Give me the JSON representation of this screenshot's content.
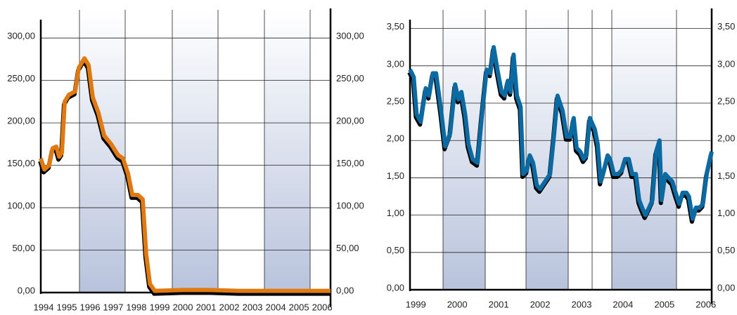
{
  "chart_data": [
    {
      "type": "line",
      "x": [
        1993.88,
        1994.03,
        1994.24,
        1994.39,
        1994.55,
        1994.67,
        1994.79,
        1994.91,
        1995.09,
        1995.36,
        1995.52,
        1995.76,
        1995.94,
        1996.12,
        1996.36,
        1996.61,
        1996.91,
        1997.21,
        1997.42,
        1997.64,
        1997.82,
        1998.06,
        1998.27,
        1998.42,
        1998.58,
        1998.79,
        1999.99,
        2001.21,
        2002.42,
        2003.64,
        2004.85,
        2006.36
      ],
      "series": [
        {
          "color": "#e07a10",
          "values": [
            158,
            145,
            150,
            170,
            172,
            160,
            165,
            225,
            233,
            237,
            265,
            276,
            268,
            230,
            212,
            185,
            175,
            162,
            158,
            140,
            115,
            115,
            110,
            45,
            10,
            2,
            3,
            3,
            2,
            2,
            2,
            2
          ]
        }
      ],
      "xlim": [
        1993.88,
        2006.36
      ],
      "xticks": [
        1994,
        1995,
        1996,
        1997,
        1998,
        1999,
        2000,
        2001,
        2002,
        2003,
        2004,
        2005,
        2006
      ],
      "ylim": [
        0,
        320
      ],
      "yticks": [
        {
          "value": 0,
          "label": "0,00"
        },
        {
          "value": 50,
          "label": "50,00"
        },
        {
          "value": 100,
          "label": "100,00"
        },
        {
          "value": 150,
          "label": "150,00"
        },
        {
          "value": 200,
          "label": "200,00"
        },
        {
          "value": 250,
          "label": "250,00"
        },
        {
          "value": 300,
          "label": "300,00"
        }
      ],
      "grid": true
    },
    {
      "type": "line",
      "x": [
        1998.86,
        1998.95,
        1999.02,
        1999.12,
        1999.24,
        1999.32,
        1999.41,
        1999.49,
        1999.61,
        1999.71,
        1999.83,
        1999.95,
        2000.03,
        2000.1,
        2000.19,
        2000.27,
        2000.37,
        2000.49,
        2000.59,
        2000.71,
        2000.8,
        2000.88,
        2000.97,
        2001.07,
        2001.15,
        2001.22,
        2001.29,
        2001.36,
        2001.44,
        2001.53,
        2001.59,
        2001.68,
        2001.75,
        2001.83,
        2001.92,
        2002.0,
        2002.12,
        2002.24,
        2002.34,
        2002.42,
        2002.54,
        2002.64,
        2002.73,
        2002.81,
        2002.88,
        2002.97,
        2003.05,
        2003.12,
        2003.2,
        2003.32,
        2003.39,
        2003.46,
        2003.54,
        2003.63,
        2003.69,
        2003.78,
        2003.88,
        2003.97,
        2004.05,
        2004.14,
        2004.22,
        2004.31,
        2004.39,
        2004.46,
        2004.54,
        2004.63,
        2004.71,
        2004.8,
        2004.88,
        2004.93,
        2005.02,
        2005.1,
        2005.19,
        2005.27,
        2005.36,
        2005.44,
        2005.53,
        2005.59,
        2005.68,
        2005.76,
        2005.85,
        2005.93,
        2006.02,
        2006.14
      ],
      "series": [
        {
          "color": "#0a6aa1",
          "values": [
            2.95,
            2.85,
            2.35,
            2.25,
            2.7,
            2.6,
            2.9,
            2.9,
            2.4,
            1.92,
            2.1,
            2.75,
            2.55,
            2.65,
            2.35,
            1.95,
            1.75,
            1.7,
            2.3,
            2.95,
            2.9,
            3.25,
            2.95,
            2.65,
            2.6,
            2.8,
            2.65,
            3.15,
            2.6,
            2.45,
            1.55,
            1.6,
            1.8,
            1.7,
            1.4,
            1.35,
            1.45,
            1.55,
            2.1,
            2.6,
            2.4,
            2.05,
            2.05,
            2.3,
            1.9,
            1.85,
            1.75,
            1.8,
            2.3,
            2.15,
            1.95,
            1.45,
            1.6,
            1.8,
            1.75,
            1.55,
            1.55,
            1.6,
            1.75,
            1.75,
            1.55,
            1.55,
            1.2,
            1.1,
            1.0,
            1.1,
            1.2,
            1.85,
            2.0,
            1.2,
            1.55,
            1.5,
            1.45,
            1.3,
            1.15,
            1.3,
            1.3,
            1.25,
            0.95,
            1.1,
            1.1,
            1.15,
            1.55,
            1.85
          ]
        }
      ],
      "xlim": [
        1998.86,
        2006.14
      ],
      "xticks": [
        1999,
        2000,
        2001,
        2002,
        2003,
        2004,
        2005,
        2006
      ],
      "ylim": [
        0,
        3.6
      ],
      "yticks": [
        {
          "value": 0,
          "label": "0,00"
        },
        {
          "value": 0.5,
          "label": "0,50"
        },
        {
          "value": 1,
          "label": "1,00"
        },
        {
          "value": 1.5,
          "label": "1,50"
        },
        {
          "value": 2,
          "label": "2,00"
        },
        {
          "value": 2.5,
          "label": "2,50"
        },
        {
          "value": 3,
          "label": "3,00"
        },
        {
          "value": 3.5,
          "label": "3,50"
        }
      ],
      "grid": true
    }
  ]
}
